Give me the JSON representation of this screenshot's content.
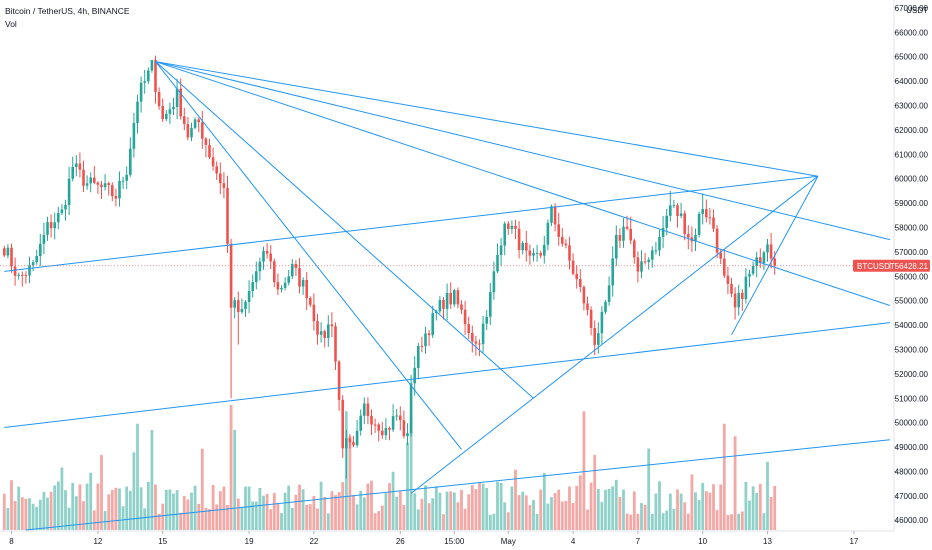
{
  "header": {
    "symbol_line": "Bitcoin / TetherUS, 4h, BINANCE",
    "volume_label": "Vol"
  },
  "price_axis": {
    "currency": "USDT",
    "ticks": [
      "67000.00",
      "66000.00",
      "65000.00",
      "64000.00",
      "63000.00",
      "62000.00",
      "61000.00",
      "60000.00",
      "59000.00",
      "58000.00",
      "57000.00",
      "56000.00",
      "55000.00",
      "54000.00",
      "53000.00",
      "52000.00",
      "51000.00",
      "50000.00",
      "49000.00",
      "48000.00",
      "47000.00",
      "46000.00"
    ]
  },
  "time_axis": {
    "ticks": [
      "8",
      "12",
      "15",
      "19",
      "22",
      "26",
      "15:00",
      "May",
      "4",
      "7",
      "10",
      "13",
      "17"
    ]
  },
  "price_label": {
    "symbol": "BTCUSDT",
    "value": "56428.21"
  },
  "colors": {
    "up": "#26a69a",
    "down": "#ef5350",
    "vol_up": "#8fd1c9",
    "vol_down": "#f4a8a6",
    "drawing": "#2196f3",
    "last_price": "#ef5350"
  },
  "chart_data": {
    "type": "candlestick",
    "interval": "4h",
    "ylim": [
      45600,
      67200
    ],
    "last_price": 56428.21,
    "date_ticks": [
      {
        "label": "8",
        "index": 2
      },
      {
        "label": "12",
        "index": 26
      },
      {
        "label": "15",
        "index": 44
      },
      {
        "label": "19",
        "index": 68
      },
      {
        "label": "22",
        "index": 86
      },
      {
        "label": "26",
        "index": 110
      },
      {
        "label": "15:00",
        "index": 125
      },
      {
        "label": "May",
        "index": 140
      },
      {
        "label": "4",
        "index": 158
      },
      {
        "label": "7",
        "index": 176
      },
      {
        "label": "10",
        "index": 194
      },
      {
        "label": "13",
        "index": 212
      },
      {
        "label": "17",
        "index": 236
      }
    ],
    "anchors": [
      {
        "i": 0,
        "p": 57200
      },
      {
        "i": 4,
        "p": 55900
      },
      {
        "i": 8,
        "p": 56400
      },
      {
        "i": 12,
        "p": 58000
      },
      {
        "i": 16,
        "p": 58600
      },
      {
        "i": 19,
        "p": 60500
      },
      {
        "i": 23,
        "p": 59800
      },
      {
        "i": 27,
        "p": 59600
      },
      {
        "i": 31,
        "p": 59300
      },
      {
        "i": 34,
        "p": 60400
      },
      {
        "i": 37,
        "p": 63300
      },
      {
        "i": 41,
        "p": 64600
      },
      {
        "i": 44,
        "p": 62400
      },
      {
        "i": 48,
        "p": 63400
      },
      {
        "i": 51,
        "p": 61800
      },
      {
        "i": 54,
        "p": 62300
      },
      {
        "i": 58,
        "p": 60600
      },
      {
        "i": 61,
        "p": 59600
      },
      {
        "i": 63,
        "p": 54900
      },
      {
        "i": 66,
        "p": 54400
      },
      {
        "i": 70,
        "p": 56200
      },
      {
        "i": 73,
        "p": 57000
      },
      {
        "i": 76,
        "p": 55400
      },
      {
        "i": 80,
        "p": 56300
      },
      {
        "i": 84,
        "p": 55400
      },
      {
        "i": 88,
        "p": 53400
      },
      {
        "i": 91,
        "p": 54200
      },
      {
        "i": 94,
        "p": 49200
      },
      {
        "i": 97,
        "p": 48800
      },
      {
        "i": 100,
        "p": 50600
      },
      {
        "i": 103,
        "p": 50100
      },
      {
        "i": 106,
        "p": 49700
      },
      {
        "i": 109,
        "p": 50300
      },
      {
        "i": 112,
        "p": 49300
      },
      {
        "i": 113,
        "p": 51800
      },
      {
        "i": 116,
        "p": 53400
      },
      {
        "i": 119,
        "p": 54200
      },
      {
        "i": 122,
        "p": 55000
      },
      {
        "i": 125,
        "p": 55100
      },
      {
        "i": 128,
        "p": 54200
      },
      {
        "i": 131,
        "p": 53200
      },
      {
        "i": 134,
        "p": 54200
      },
      {
        "i": 137,
        "p": 57200
      },
      {
        "i": 140,
        "p": 58200
      },
      {
        "i": 143,
        "p": 57400
      },
      {
        "i": 146,
        "p": 56500
      },
      {
        "i": 149,
        "p": 56900
      },
      {
        "i": 152,
        "p": 58600
      },
      {
        "i": 155,
        "p": 57400
      },
      {
        "i": 158,
        "p": 56200
      },
      {
        "i": 161,
        "p": 55000
      },
      {
        "i": 164,
        "p": 53400
      },
      {
        "i": 167,
        "p": 54600
      },
      {
        "i": 170,
        "p": 57400
      },
      {
        "i": 173,
        "p": 58200
      },
      {
        "i": 176,
        "p": 56000
      },
      {
        "i": 179,
        "p": 56900
      },
      {
        "i": 182,
        "p": 57500
      },
      {
        "i": 185,
        "p": 58900
      },
      {
        "i": 188,
        "p": 58400
      },
      {
        "i": 191,
        "p": 57400
      },
      {
        "i": 194,
        "p": 58900
      },
      {
        "i": 197,
        "p": 58000
      },
      {
        "i": 200,
        "p": 55800
      },
      {
        "i": 203,
        "p": 54600
      },
      {
        "i": 206,
        "p": 55800
      },
      {
        "i": 209,
        "p": 56500
      },
      {
        "i": 212,
        "p": 57600
      },
      {
        "i": 214,
        "p": 56400
      }
    ],
    "spikes": [
      {
        "i": 63,
        "low": 51000
      },
      {
        "i": 65,
        "low": 53200
      },
      {
        "i": 95,
        "low": 47700
      },
      {
        "i": 41,
        "high": 64800
      },
      {
        "i": 185,
        "high": 59500
      },
      {
        "i": 194,
        "high": 59400
      }
    ],
    "volume_spikes": [
      {
        "i": 63,
        "v": 1.0
      },
      {
        "i": 64,
        "v": 0.8
      },
      {
        "i": 95,
        "v": 0.95
      },
      {
        "i": 96,
        "v": 0.75
      },
      {
        "i": 112,
        "v": 0.7
      },
      {
        "i": 113,
        "v": 0.9
      },
      {
        "i": 41,
        "v": 0.8
      },
      {
        "i": 37,
        "v": 0.85
      },
      {
        "i": 161,
        "v": 0.95
      },
      {
        "i": 164,
        "v": 0.6
      },
      {
        "i": 200,
        "v": 0.85
      },
      {
        "i": 203,
        "v": 0.75
      },
      {
        "i": 16,
        "v": 0.5
      },
      {
        "i": 27,
        "v": 0.6
      },
      {
        "i": 55,
        "v": 0.65
      }
    ],
    "drawings": {
      "trendlines": [
        {
          "from": {
            "i": 0,
            "p": 56200
          },
          "to": {
            "i": 226,
            "p": 60100
          }
        },
        {
          "from": {
            "i": 0,
            "p": 49800
          },
          "to": {
            "i": 246,
            "p": 54100
          }
        },
        {
          "from": {
            "i": 6,
            "p": 45600
          },
          "to": {
            "i": 246,
            "p": 49300
          }
        },
        {
          "from": {
            "i": 113,
            "p": 47100
          },
          "to": {
            "i": 226,
            "p": 60100
          }
        },
        {
          "from": {
            "i": 202,
            "p": 53600
          },
          "to": {
            "i": 226,
            "p": 60100
          }
        }
      ],
      "fan_origin": {
        "i": 42,
        "p": 64800
      },
      "fan_rays": [
        {
          "i": 226,
          "p": 60100
        },
        {
          "i": 246,
          "p": 57500
        },
        {
          "i": 246,
          "p": 54800
        },
        {
          "i": 147,
          "p": 51000
        },
        {
          "i": 127,
          "p": 48900
        }
      ]
    }
  }
}
